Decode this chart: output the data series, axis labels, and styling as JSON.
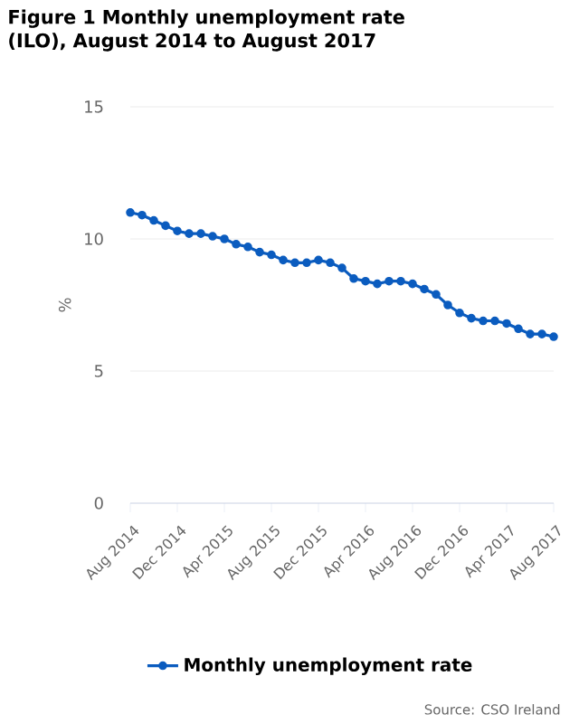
{
  "chart_data": {
    "type": "line",
    "title": "Figure 1 Monthly unemployment rate (ILO), August 2014 to August 2017",
    "ylabel": "%",
    "x": [
      "2014-08",
      "2014-09",
      "2014-10",
      "2014-11",
      "2014-12",
      "2015-01",
      "2015-02",
      "2015-03",
      "2015-04",
      "2015-05",
      "2015-06",
      "2015-07",
      "2015-08",
      "2015-09",
      "2015-10",
      "2015-11",
      "2015-12",
      "2016-01",
      "2016-02",
      "2016-03",
      "2016-04",
      "2016-05",
      "2016-06",
      "2016-07",
      "2016-08",
      "2016-09",
      "2016-10",
      "2016-11",
      "2016-12",
      "2017-01",
      "2017-02",
      "2017-03",
      "2017-04",
      "2017-05",
      "2017-06",
      "2017-07",
      "2017-08"
    ],
    "series": [
      {
        "name": "Monthly unemployment rate",
        "color": "#0b5cbf",
        "values": [
          11.0,
          10.9,
          10.7,
          10.5,
          10.3,
          10.2,
          10.2,
          10.1,
          10.0,
          9.8,
          9.7,
          9.5,
          9.4,
          9.2,
          9.1,
          9.1,
          9.2,
          9.1,
          8.9,
          8.5,
          8.4,
          8.3,
          8.4,
          8.4,
          8.3,
          8.1,
          7.9,
          7.5,
          7.2,
          7.0,
          6.9,
          6.9,
          6.8,
          6.6,
          6.4,
          6.4,
          6.3
        ]
      }
    ],
    "xlim": [
      "2014-08",
      "2017-08"
    ],
    "xticks": [
      {
        "value": "2014-08",
        "label": "Aug 2014"
      },
      {
        "value": "2014-12",
        "label": "Dec 2014"
      },
      {
        "value": "2015-04",
        "label": "Apr 2015"
      },
      {
        "value": "2015-08",
        "label": "Aug 2015"
      },
      {
        "value": "2015-12",
        "label": "Dec 2015"
      },
      {
        "value": "2016-04",
        "label": "Apr 2016"
      },
      {
        "value": "2016-08",
        "label": "Aug 2016"
      },
      {
        "value": "2016-12",
        "label": "Dec 2016"
      },
      {
        "value": "2017-04",
        "label": "Apr 2017"
      },
      {
        "value": "2017-08",
        "label": "Aug 2017"
      }
    ],
    "ylim": [
      0,
      15
    ],
    "yticks": [
      0,
      5,
      10,
      15
    ],
    "grid": "y",
    "legend": "bottom",
    "marker": "circle",
    "line_style": "solid",
    "annotations": [
      "Source: CSO Ireland"
    ]
  }
}
